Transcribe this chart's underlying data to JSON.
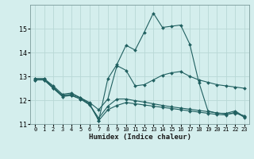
{
  "xlabel": "Humidex (Indice chaleur)",
  "bg_color": "#d4eeed",
  "grid_color": "#b8d8d6",
  "line_color": "#206060",
  "xlim": [
    -0.5,
    23.5
  ],
  "ylim": [
    11,
    16.0
  ],
  "yticks": [
    11,
    12,
    13,
    14,
    15
  ],
  "xticks": [
    0,
    1,
    2,
    3,
    4,
    5,
    6,
    7,
    8,
    9,
    10,
    11,
    12,
    13,
    14,
    15,
    16,
    17,
    18,
    19,
    20,
    21,
    22,
    23
  ],
  "line1_y": [
    12.9,
    12.9,
    12.55,
    12.2,
    12.25,
    12.1,
    11.85,
    11.15,
    12.9,
    13.5,
    14.3,
    14.1,
    14.85,
    15.65,
    15.05,
    15.1,
    15.15,
    14.35,
    12.75,
    11.55,
    11.45,
    11.45,
    11.55,
    11.3
  ],
  "line2_y": [
    12.9,
    12.9,
    12.6,
    12.25,
    12.3,
    12.1,
    11.9,
    11.6,
    12.05,
    13.45,
    13.25,
    12.6,
    12.65,
    12.85,
    13.05,
    13.15,
    13.2,
    13.0,
    12.85,
    12.75,
    12.65,
    12.6,
    12.55,
    12.5
  ],
  "line3_y": [
    12.85,
    12.85,
    12.5,
    12.15,
    12.2,
    12.05,
    11.8,
    11.25,
    11.75,
    12.05,
    12.05,
    11.98,
    11.92,
    11.85,
    11.78,
    11.72,
    11.67,
    11.62,
    11.57,
    11.52,
    11.47,
    11.42,
    11.45,
    11.35
  ],
  "line4_y": [
    12.85,
    12.85,
    12.5,
    12.2,
    12.2,
    12.05,
    11.82,
    11.15,
    11.6,
    11.78,
    11.9,
    11.85,
    11.8,
    11.75,
    11.7,
    11.65,
    11.6,
    11.55,
    11.5,
    11.45,
    11.4,
    11.38,
    11.5,
    11.28
  ]
}
